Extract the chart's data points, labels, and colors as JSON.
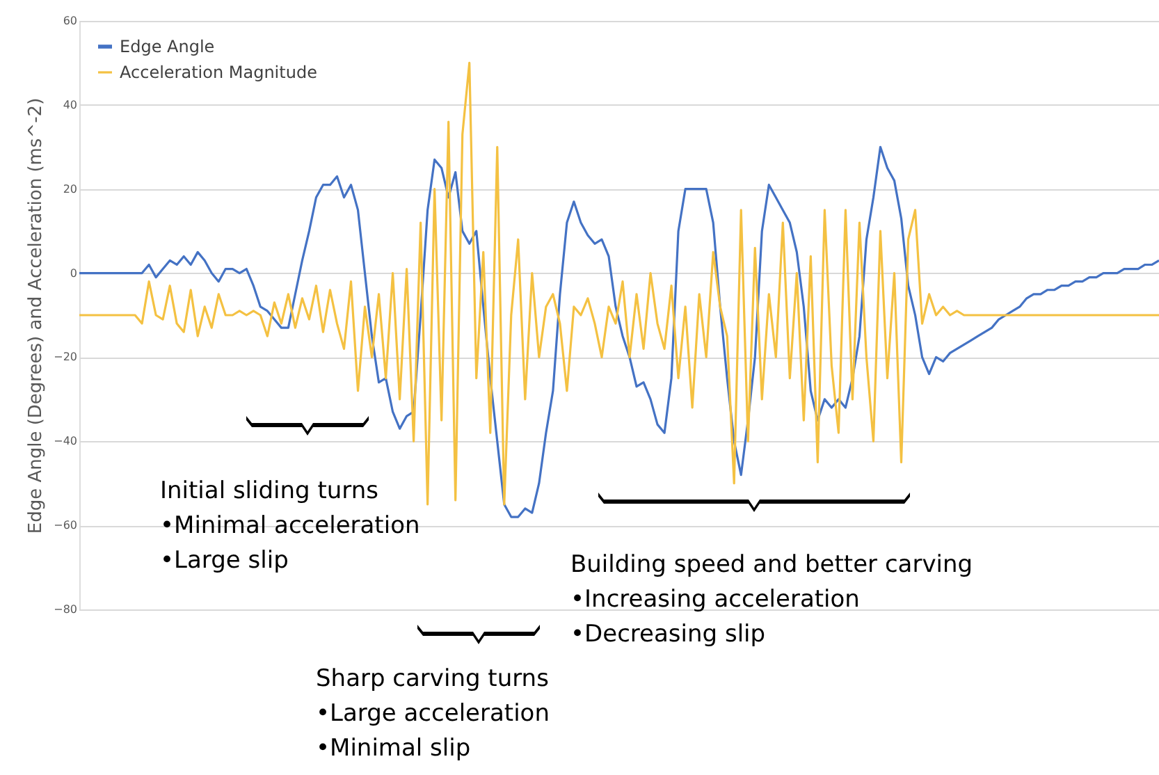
{
  "chart_data": {
    "type": "line",
    "ylabel": "Edge Angle (Degrees) and Acceleration  (ms^-2)",
    "categories": [
      null,
      null,
      null,
      null,
      null,
      null,
      null,
      null,
      null,
      null,
      null,
      null,
      null,
      null,
      null,
      null,
      null,
      null,
      null,
      null,
      null,
      null,
      null,
      null,
      null,
      null,
      null,
      null,
      null,
      null,
      null,
      null,
      null,
      null,
      null,
      null,
      null,
      null,
      null,
      null,
      null,
      null,
      null,
      null,
      null,
      null,
      null,
      null,
      null,
      null,
      null,
      null,
      null,
      null,
      null,
      null,
      null,
      null,
      null,
      null,
      null,
      null,
      null,
      null,
      null,
      null,
      null,
      null,
      null,
      null,
      null,
      null,
      null,
      null,
      null,
      null,
      null,
      null,
      null,
      null,
      null,
      null,
      null,
      null,
      null,
      null,
      null,
      null,
      null,
      null,
      null,
      null,
      null,
      null,
      null,
      null,
      null,
      null,
      null,
      null,
      null,
      null,
      null,
      null,
      null,
      null,
      null,
      null,
      null,
      null,
      null,
      null,
      null,
      null,
      null,
      null,
      null,
      null,
      null,
      null,
      null,
      null,
      null,
      null,
      null,
      null,
      null,
      null,
      null,
      null,
      null,
      null,
      null,
      null,
      null,
      null,
      null,
      null,
      null,
      null,
      null,
      null,
      null,
      null,
      null,
      null,
      null,
      null,
      null,
      null,
      null,
      null,
      null,
      null,
      null,
      null
    ],
    "series": [
      {
        "name": "Edge Angle",
        "color": "#4472c4",
        "values": [
          0,
          0,
          0,
          0,
          0,
          0,
          0,
          0,
          0,
          0,
          2,
          -1,
          1,
          3,
          2,
          4,
          2,
          5,
          3,
          0,
          -2,
          1,
          1,
          0,
          1,
          -3,
          -8,
          -9,
          -11,
          -13,
          -13,
          -5,
          3,
          10,
          18,
          21,
          21,
          23,
          18,
          21,
          15,
          0,
          -15,
          -26,
          -25,
          -33,
          -37,
          -34,
          -33,
          -10,
          15,
          27,
          25,
          18,
          24,
          10,
          7,
          10,
          -8,
          -25,
          -40,
          -55,
          -58,
          -58,
          -56,
          -57,
          -50,
          -38,
          -28,
          -5,
          12,
          17,
          12,
          9,
          7,
          8,
          4,
          -8,
          -15,
          -20,
          -27,
          -26,
          -30,
          -36,
          -38,
          -25,
          10,
          20,
          20,
          20,
          20,
          12,
          -8,
          -25,
          -40,
          -48,
          -35,
          -20,
          10,
          21,
          18,
          15,
          12,
          5,
          -8,
          -28,
          -35,
          -30,
          -32,
          -30,
          -32,
          -25,
          -15,
          8,
          18,
          30,
          25,
          22,
          13,
          -3,
          -10,
          -20,
          -24,
          -20,
          -21,
          -19,
          -18,
          -17,
          -16,
          -15,
          -14,
          -13,
          -11,
          -10,
          -9,
          -8,
          -6,
          -5,
          -5,
          -4,
          -4,
          -3,
          -3,
          -2,
          -2,
          -1,
          -1,
          0,
          0,
          0,
          1,
          1,
          1,
          2,
          2,
          3
        ]
      },
      {
        "name": "Acceleration Magnitude",
        "color": "#f4c142",
        "values": [
          -10,
          -10,
          -10,
          -10,
          -10,
          -10,
          -10,
          -10,
          -10,
          -12,
          -2,
          -10,
          -11,
          -3,
          -12,
          -14,
          -4,
          -15,
          -8,
          -13,
          -5,
          -10,
          -10,
          -9,
          -10,
          -9,
          -10,
          -15,
          -7,
          -12,
          -5,
          -13,
          -6,
          -11,
          -3,
          -14,
          -4,
          -12,
          -18,
          -2,
          -28,
          -8,
          -20,
          -5,
          -25,
          0,
          -30,
          1,
          -40,
          12,
          -55,
          20,
          -35,
          36,
          -54,
          33,
          50,
          -25,
          5,
          -38,
          30,
          -55,
          -10,
          8,
          -30,
          0,
          -20,
          -8,
          -5,
          -12,
          -28,
          -8,
          -10,
          -6,
          -12,
          -20,
          -8,
          -12,
          -2,
          -20,
          -5,
          -18,
          0,
          -12,
          -18,
          -3,
          -25,
          -8,
          -32,
          -5,
          -20,
          5,
          -8,
          -15,
          -50,
          15,
          -40,
          6,
          -30,
          -5,
          -20,
          12,
          -25,
          0,
          -35,
          4,
          -45,
          15,
          -22,
          -38,
          15,
          -30,
          12,
          -20,
          -40,
          10,
          -25,
          0,
          -45,
          8,
          15,
          -12,
          -5,
          -10,
          -8,
          -10,
          -9,
          -10,
          -10,
          -10,
          -10,
          -10,
          -10,
          -10,
          -10,
          -10,
          -10,
          -10,
          -10,
          -10,
          -10,
          -10,
          -10,
          -10,
          -10,
          -10,
          -10,
          -10,
          -10,
          -10,
          -10,
          -10,
          -10,
          -10,
          -10,
          -10
        ]
      }
    ],
    "ylim": [
      -80,
      60
    ],
    "yticks": [
      -80,
      -60,
      -40,
      -20,
      0,
      20,
      40,
      60
    ],
    "grid": "y",
    "legend": "top left",
    "tick_labels": "y",
    "annotations": [
      "Initial sliding turns\n•Minimal acceleration\n•Large slip",
      "Sharp carving turns\n•Large acceleration\n•Minimal slip",
      "Building speed and better carving\n•Increasing acceleration\n•Decreasing slip"
    ]
  }
}
